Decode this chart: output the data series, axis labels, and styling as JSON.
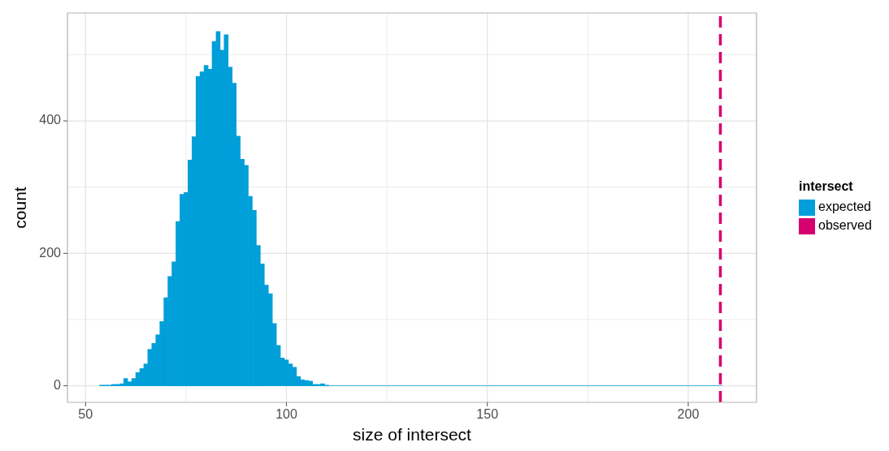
{
  "chart_data": {
    "type": "histogram",
    "xlabel": "size of intersect",
    "ylabel": "count",
    "legend_title": "intersect",
    "bins": [
      53.5,
      54.5,
      55.5,
      56.5,
      57.5,
      58.5,
      59.5,
      60.5,
      61.5,
      62.5,
      63.5,
      64.5,
      65.5,
      66.5,
      67.5,
      68.5,
      69.5,
      70.5,
      71.5,
      72.5,
      73.5,
      74.5,
      75.5,
      76.5,
      77.5,
      78.5,
      79.5,
      80.5,
      81.5,
      82.5,
      83.5,
      84.5,
      85.5,
      86.5,
      87.5,
      88.5,
      89.5,
      90.5,
      91.5,
      92.5,
      93.5,
      94.5,
      95.5,
      96.5,
      97.5,
      98.5,
      99.5,
      100.5,
      101.5,
      102.5,
      103.5,
      104.5,
      105.5,
      106.5,
      107.5,
      108.5,
      109.5,
      110.5,
      111.5,
      112.5,
      113.5,
      114.5,
      115.5,
      116.5,
      117.5,
      118.5,
      119.5,
      120.5,
      121.5,
      122.5,
      123.5,
      124.5,
      125.5,
      126.5,
      127.5,
      128.5,
      129.5,
      130.5,
      131.5,
      132.5,
      133.5,
      134.5,
      135.5,
      136.5,
      137.5,
      138.5,
      139.5,
      140.5,
      141.5,
      142.5,
      143.5,
      144.5,
      145.5,
      146.5,
      147.5,
      148.5,
      149.5,
      150.5,
      151.5,
      152.5,
      153.5,
      154.5,
      155.5,
      156.5,
      157.5,
      158.5,
      159.5,
      160.5,
      161.5,
      162.5,
      163.5,
      164.5,
      165.5,
      166.5,
      167.5,
      168.5,
      169.5,
      170.5,
      171.5,
      172.5,
      173.5,
      174.5,
      175.5,
      176.5,
      177.5,
      178.5,
      179.5,
      180.5,
      181.5,
      182.5,
      183.5,
      184.5,
      185.5,
      186.5,
      187.5,
      188.5,
      189.5,
      190.5,
      191.5,
      192.5,
      193.5,
      194.5,
      195.5,
      196.5,
      197.5,
      198.5,
      199.5,
      200.5,
      201.5,
      202.5,
      203.5,
      204.5,
      205.5,
      206.5,
      207.5,
      208.5
    ],
    "series": [
      {
        "name": "expected",
        "color": "#009fd9",
        "values": [
          1,
          1,
          1,
          2,
          2,
          3,
          11,
          6,
          11,
          20,
          26,
          33,
          55,
          64,
          77,
          97,
          133,
          165,
          187,
          248,
          289,
          292,
          341,
          376,
          467,
          474,
          484,
          478,
          520,
          535,
          507,
          530,
          481,
          457,
          377,
          342,
          333,
          286,
          265,
          212,
          184,
          152,
          139,
          94,
          61,
          42,
          39,
          33,
          28,
          14,
          9,
          8,
          7,
          2,
          2,
          3,
          1,
          0,
          0,
          0,
          0,
          0,
          0,
          0,
          0,
          0,
          0,
          0,
          0,
          0,
          0,
          0,
          0,
          0,
          0,
          0,
          0,
          0,
          0,
          0,
          0,
          0,
          0,
          0,
          0,
          0,
          0,
          0,
          0,
          0,
          0,
          0,
          0,
          0,
          0,
          0,
          0,
          0,
          0,
          0,
          0,
          0,
          0,
          0,
          0,
          0,
          0,
          0,
          0,
          0,
          0,
          0,
          0,
          0,
          0,
          0,
          0,
          0,
          0,
          0,
          0,
          0,
          0,
          0,
          0,
          0,
          0,
          0,
          0,
          0,
          0,
          0,
          0,
          0,
          0,
          0,
          0,
          0,
          0,
          0,
          0,
          0,
          0,
          0,
          0,
          0,
          0,
          0,
          0,
          0,
          0,
          0,
          0,
          0,
          0
        ]
      },
      {
        "name": "observed",
        "type": "line",
        "color": "#d6006f",
        "line_style": "dashed",
        "x": [
          208,
          208
        ],
        "values": [
          -25,
          563
        ]
      }
    ],
    "xlim": [
      45.5,
      217
    ],
    "xticks": [
      50,
      {
        "value": 75,
        "label": null
      },
      100,
      {
        "value": 125,
        "label": null
      },
      150,
      {
        "value": 175,
        "label": null
      },
      200
    ],
    "ylim": [
      -25,
      563
    ],
    "yticks": [
      0,
      {
        "value": 100,
        "label": null
      },
      200,
      {
        "value": 300,
        "label": null
      },
      400,
      {
        "value": 500,
        "label": null
      }
    ],
    "grid": true,
    "legend": "right"
  }
}
